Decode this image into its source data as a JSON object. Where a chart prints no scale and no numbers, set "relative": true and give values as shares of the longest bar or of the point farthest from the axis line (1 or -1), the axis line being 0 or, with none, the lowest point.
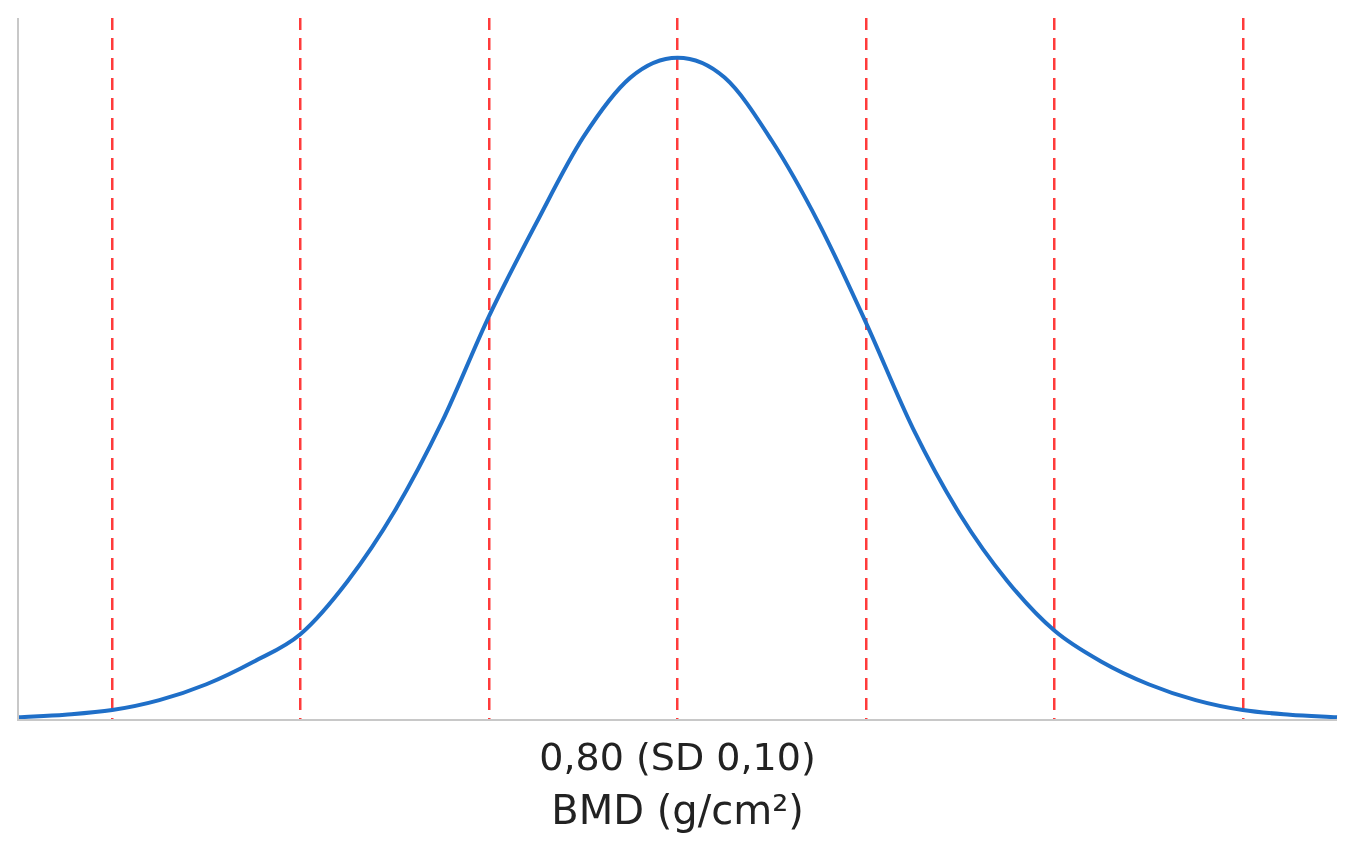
{
  "chart_data": {
    "type": "line",
    "xlabel": "BMD (g/cm²)",
    "relative": true,
    "tick_labels": false,
    "grid": "x",
    "legend": false,
    "marker": "none",
    "line_style": "solid",
    "annotations": [
      "0,80 (SD 0,10)"
    ],
    "categories": [
      null,
      null,
      null,
      null,
      null,
      null,
      null,
      null,
      null,
      null,
      null,
      null,
      null,
      null,
      null,
      null,
      null,
      null,
      null,
      null,
      null,
      null,
      null,
      null,
      null,
      null,
      null,
      null,
      null
    ],
    "series": [
      {
        "color": "#1f6fc8",
        "values": [
          0.004,
          0.008,
          0.015,
          0.03,
          0.054,
          0.088,
          0.13,
          0.21,
          0.316,
          0.45,
          0.61,
          0.75,
          0.88,
          0.97,
          1,
          0.97,
          0.875,
          0.75,
          0.6,
          0.44,
          0.31,
          0.21,
          0.135,
          0.088,
          0.054,
          0.03,
          0.015,
          0.008,
          0.004
        ]
      }
    ]
  }
}
